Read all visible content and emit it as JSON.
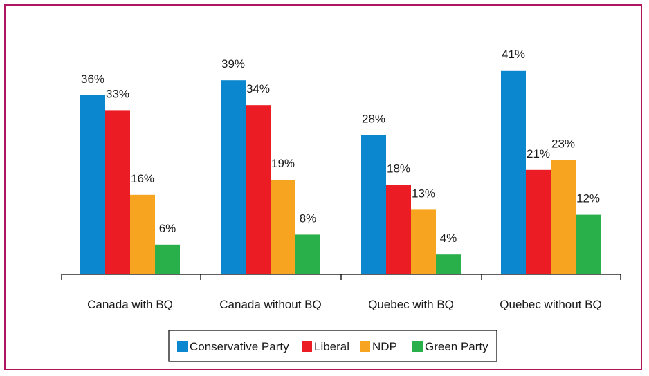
{
  "chart_data": {
    "type": "bar",
    "categories": [
      "Canada with BQ",
      "Canada without BQ",
      "Quebec with BQ",
      "Quebec without BQ"
    ],
    "series": [
      {
        "name": "Conservative Party",
        "color": "#0a87cf",
        "values": [
          36,
          39,
          28,
          41
        ],
        "labels": [
          "36%",
          "39%",
          "28%",
          "41%"
        ]
      },
      {
        "name": "Liberal",
        "color": "#ec1c24",
        "values": [
          33,
          34,
          18,
          21
        ],
        "labels": [
          "33%",
          "34%",
          "18%",
          "21%"
        ]
      },
      {
        "name": "NDP",
        "color": "#f7a521",
        "values": [
          16,
          19,
          13,
          23
        ],
        "labels": [
          "16%",
          "19%",
          "13%",
          "23%"
        ]
      },
      {
        "name": "Green Party",
        "color": "#2ab04a",
        "values": [
          6,
          8,
          4,
          12
        ],
        "labels": [
          "6%",
          "8%",
          "4%",
          "12%"
        ]
      }
    ],
    "ylim": [
      0,
      45
    ],
    "unit": "%",
    "grid": false,
    "legend": "bottom-center",
    "frame_color": "#b0155f"
  }
}
